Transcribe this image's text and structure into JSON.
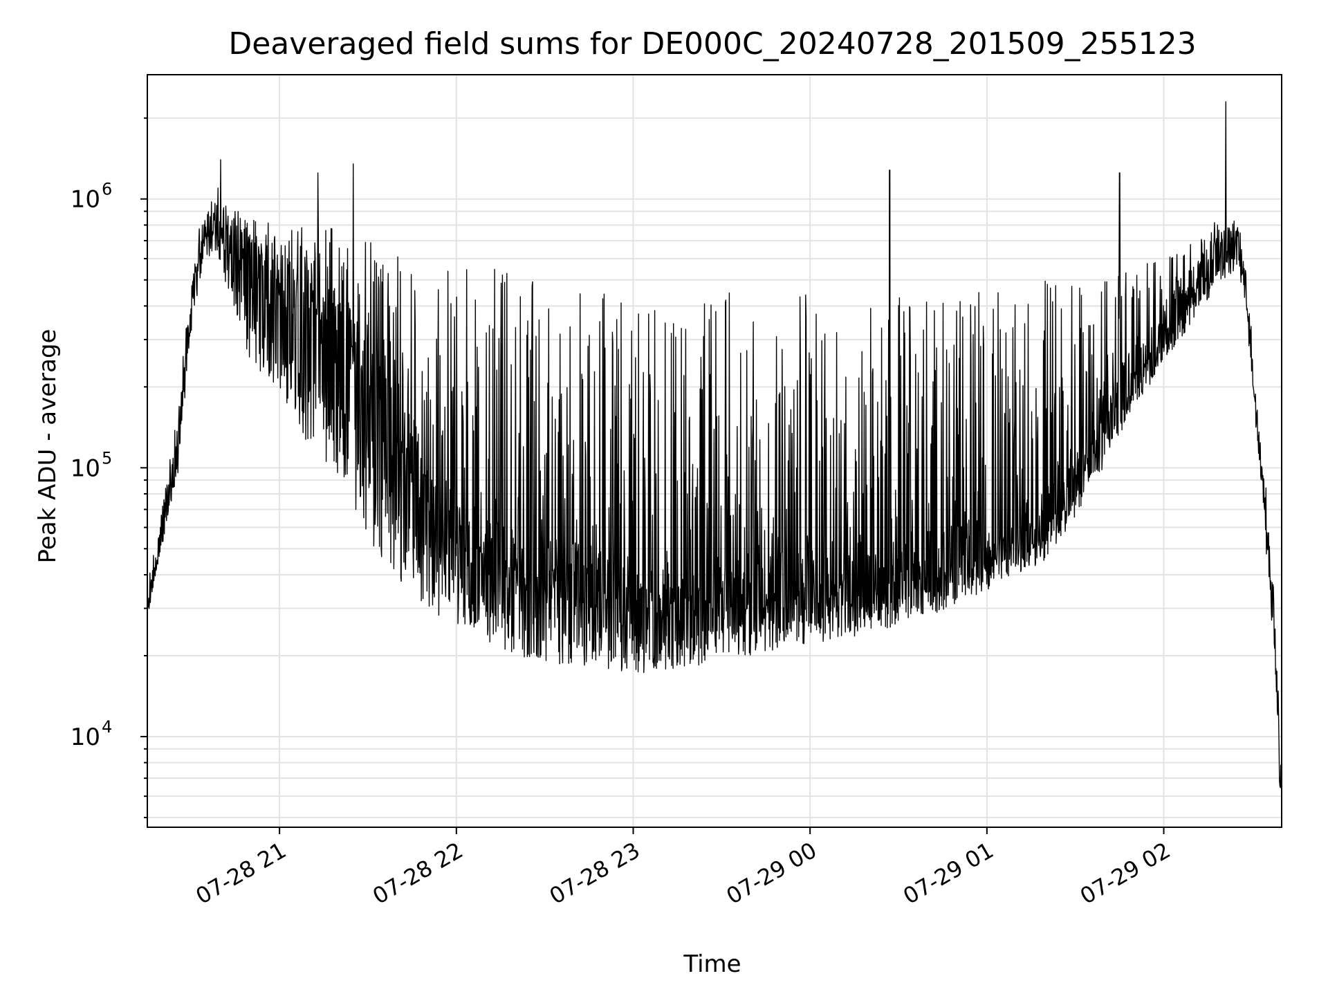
{
  "chart_data": {
    "type": "line",
    "title": "Deaveraged field sums for DE000C_20240728_201509_255123",
    "xlabel": "Time",
    "ylabel": "Peak ADU - average",
    "yscale": "log",
    "ylim": [
      4600,
      2900000
    ],
    "xlim": [
      "2024-07-28 20:15:09",
      "2024-07-29 02:40:00"
    ],
    "grid": true,
    "x_ticks": [
      {
        "time": "2024-07-28 21:00",
        "label": "07-28 21"
      },
      {
        "time": "2024-07-28 22:00",
        "label": "07-28 22"
      },
      {
        "time": "2024-07-28 23:00",
        "label": "07-28 23"
      },
      {
        "time": "2024-07-29 00:00",
        "label": "07-29 00"
      },
      {
        "time": "2024-07-29 01:00",
        "label": "07-29 01"
      },
      {
        "time": "2024-07-29 02:00",
        "label": "07-29 02"
      }
    ],
    "y_ticks": [
      {
        "value": 10000,
        "base": "10",
        "exp": "4"
      },
      {
        "value": 100000,
        "base": "10",
        "exp": "5"
      },
      {
        "value": 1000000,
        "base": "10",
        "exp": "6"
      }
    ],
    "envelope": {
      "description_units": "time, lower bound ADU, upper bound ADU, baseline ADU",
      "points": [
        [
          "2024-07-28 20:15",
          27000,
          30000,
          28000
        ],
        [
          "2024-07-28 20:20",
          50000,
          70000,
          60000
        ],
        [
          "2024-07-28 20:25",
          90000,
          150000,
          110000
        ],
        [
          "2024-07-28 20:30",
          300000,
          500000,
          400000
        ],
        [
          "2024-07-28 20:35",
          700000,
          900000,
          800000
        ],
        [
          "2024-07-28 20:40",
          550000,
          1000000,
          850000
        ],
        [
          "2024-07-28 20:50",
          250000,
          900000,
          600000
        ],
        [
          "2024-07-28 21:00",
          180000,
          800000,
          500000
        ],
        [
          "2024-07-28 21:10",
          120000,
          800000,
          400000
        ],
        [
          "2024-07-28 21:20",
          90000,
          800000,
          350000
        ],
        [
          "2024-07-28 21:30",
          55000,
          700000,
          250000
        ],
        [
          "2024-07-28 21:40",
          38000,
          650000,
          150000
        ],
        [
          "2024-07-28 21:50",
          30000,
          600000,
          90000
        ],
        [
          "2024-07-28 22:00",
          25000,
          550000,
          60000
        ],
        [
          "2024-07-28 22:20",
          20000,
          550000,
          45000
        ],
        [
          "2024-07-28 22:40",
          18000,
          500000,
          40000
        ],
        [
          "2024-07-28 23:00",
          17000,
          450000,
          35000
        ],
        [
          "2024-07-28 23:20",
          18000,
          450000,
          35000
        ],
        [
          "2024-07-28 23:40",
          20000,
          450000,
          36000
        ],
        [
          "2024-07-29 00:00",
          22000,
          450000,
          38000
        ],
        [
          "2024-07-29 00:20",
          24000,
          450000,
          40000
        ],
        [
          "2024-07-29 00:40",
          28000,
          450000,
          45000
        ],
        [
          "2024-07-29 01:00",
          35000,
          450000,
          50000
        ],
        [
          "2024-07-29 01:20",
          45000,
          500000,
          70000
        ],
        [
          "2024-07-29 01:35",
          80000,
          500000,
          120000
        ],
        [
          "2024-07-29 01:50",
          170000,
          600000,
          220000
        ],
        [
          "2024-07-29 02:00",
          250000,
          600000,
          320000
        ],
        [
          "2024-07-29 02:10",
          350000,
          700000,
          500000
        ],
        [
          "2024-07-29 02:20",
          500000,
          800000,
          680000
        ],
        [
          "2024-07-29 02:25",
          550000,
          850000,
          720000
        ],
        [
          "2024-07-29 02:28",
          400000,
          700000,
          500000
        ],
        [
          "2024-07-29 02:31",
          150000,
          200000,
          170000
        ],
        [
          "2024-07-29 02:34",
          70000,
          90000,
          80000
        ],
        [
          "2024-07-29 02:37",
          25000,
          40000,
          30000
        ],
        [
          "2024-07-29 02:40",
          6000,
          8000,
          6000
        ]
      ]
    },
    "notable_peaks": [
      {
        "time": "2024-07-28 20:40",
        "value": 1400000
      },
      {
        "time": "2024-07-28 21:13",
        "value": 1250000
      },
      {
        "time": "2024-07-28 21:25",
        "value": 1350000
      },
      {
        "time": "2024-07-29 00:27",
        "value": 1280000
      },
      {
        "time": "2024-07-29 01:45",
        "value": 1250000
      },
      {
        "time": "2024-07-29 02:21",
        "value": 2300000
      }
    ],
    "color": "#000000"
  }
}
